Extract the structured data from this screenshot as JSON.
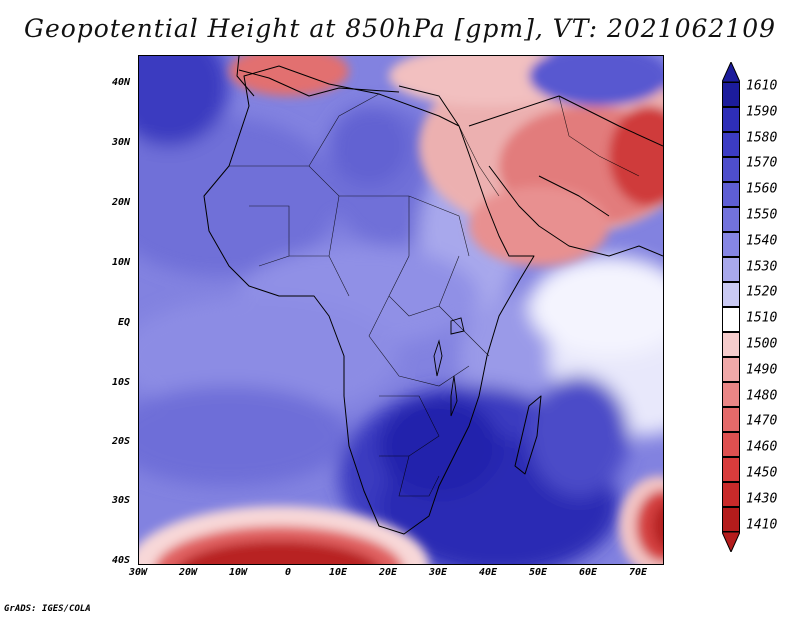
{
  "title": "Geopotential Height at 850hPa [gpm], VT: 2021062109",
  "footer": "GrADS: IGES/COLA",
  "lat_labels": [
    "40N",
    "30N",
    "20N",
    "10N",
    "EQ",
    "10S",
    "20S",
    "30S",
    "40S"
  ],
  "lon_labels": [
    "30W",
    "20W",
    "10W",
    "0",
    "10E",
    "20E",
    "30E",
    "40E",
    "50E",
    "60E",
    "70E"
  ],
  "colorbar": {
    "labels": [
      "1610",
      "1590",
      "1580",
      "1570",
      "1560",
      "1550",
      "1540",
      "1530",
      "1520",
      "1510",
      "1500",
      "1490",
      "1480",
      "1470",
      "1460",
      "1450",
      "1430",
      "1410"
    ],
    "colors": [
      "#1c1c9c",
      "#2e2eb8",
      "#3c3cc4",
      "#4e4ecc",
      "#5e5ed4",
      "#7272dc",
      "#8686e4",
      "#a8a8ec",
      "#cacaf4",
      "#ffffff",
      "#f6cccc",
      "#f0a8a8",
      "#ea8686",
      "#e46a6a",
      "#de5050",
      "#d83c3c",
      "#c82a2a",
      "#b41c1c"
    ]
  },
  "chart_data": {
    "type": "heatmap",
    "title": "Geopotential Height at 850hPa [gpm], VT: 2021062109",
    "variable": "Geopotential Height at 850hPa",
    "units": "gpm",
    "valid_time": "2021062109",
    "xlim": [
      -30,
      75
    ],
    "ylim": [
      -40,
      45
    ],
    "levels": [
      1410,
      1430,
      1450,
      1460,
      1470,
      1480,
      1490,
      1500,
      1510,
      1520,
      1530,
      1540,
      1550,
      1560,
      1570,
      1580,
      1590,
      1610
    ]
  }
}
